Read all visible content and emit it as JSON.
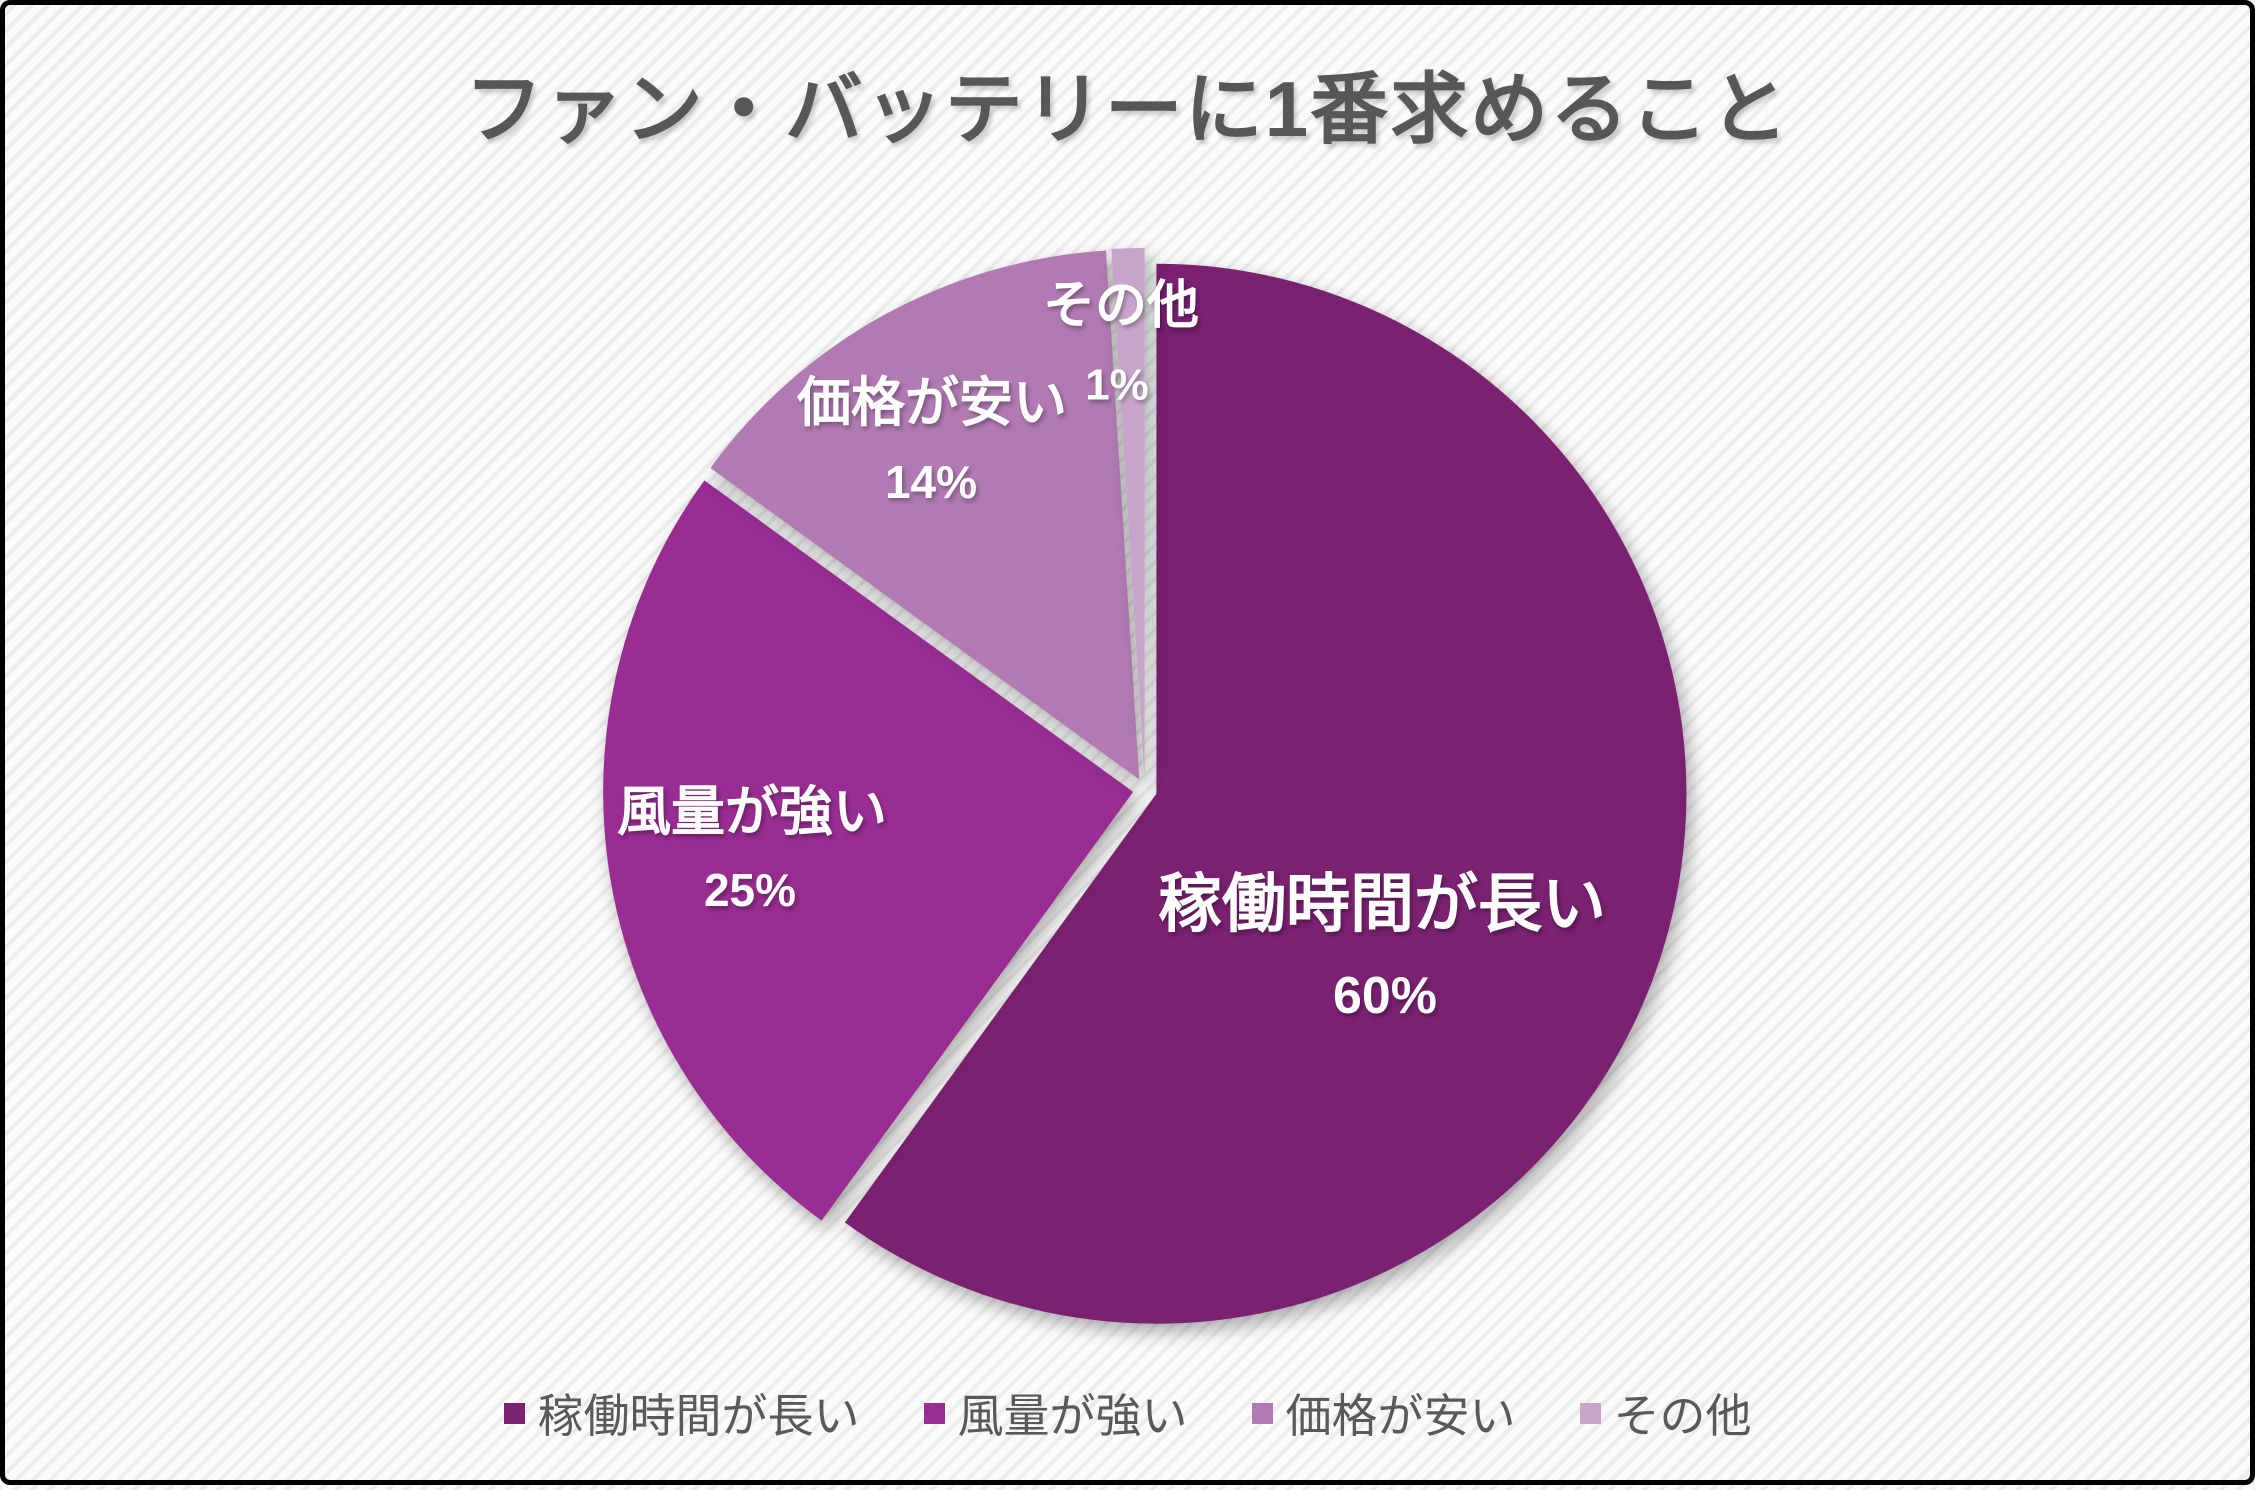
{
  "page": {
    "border_color": "#000000",
    "background_stripe_color": "#ececec",
    "title_color": "#575757"
  },
  "chart_data": {
    "type": "pie",
    "title": "ファン・バッテリーに1番求めること",
    "categories": [
      "稼働時間が長い",
      "風量が強い",
      "価格が安い",
      "その他"
    ],
    "values": [
      60,
      25,
      14,
      1
    ],
    "data_labels": [
      "60%",
      "25%",
      "14%",
      "1%"
    ],
    "colors": [
      "#7a2172",
      "#992d92",
      "#b17ab3",
      "#c8a6cc"
    ],
    "start_angle_deg": 0,
    "direction": "clockwise",
    "exploded": true,
    "legend_position": "bottom",
    "label_text_color": "#ffffff",
    "legend_text_color": "#595959"
  }
}
